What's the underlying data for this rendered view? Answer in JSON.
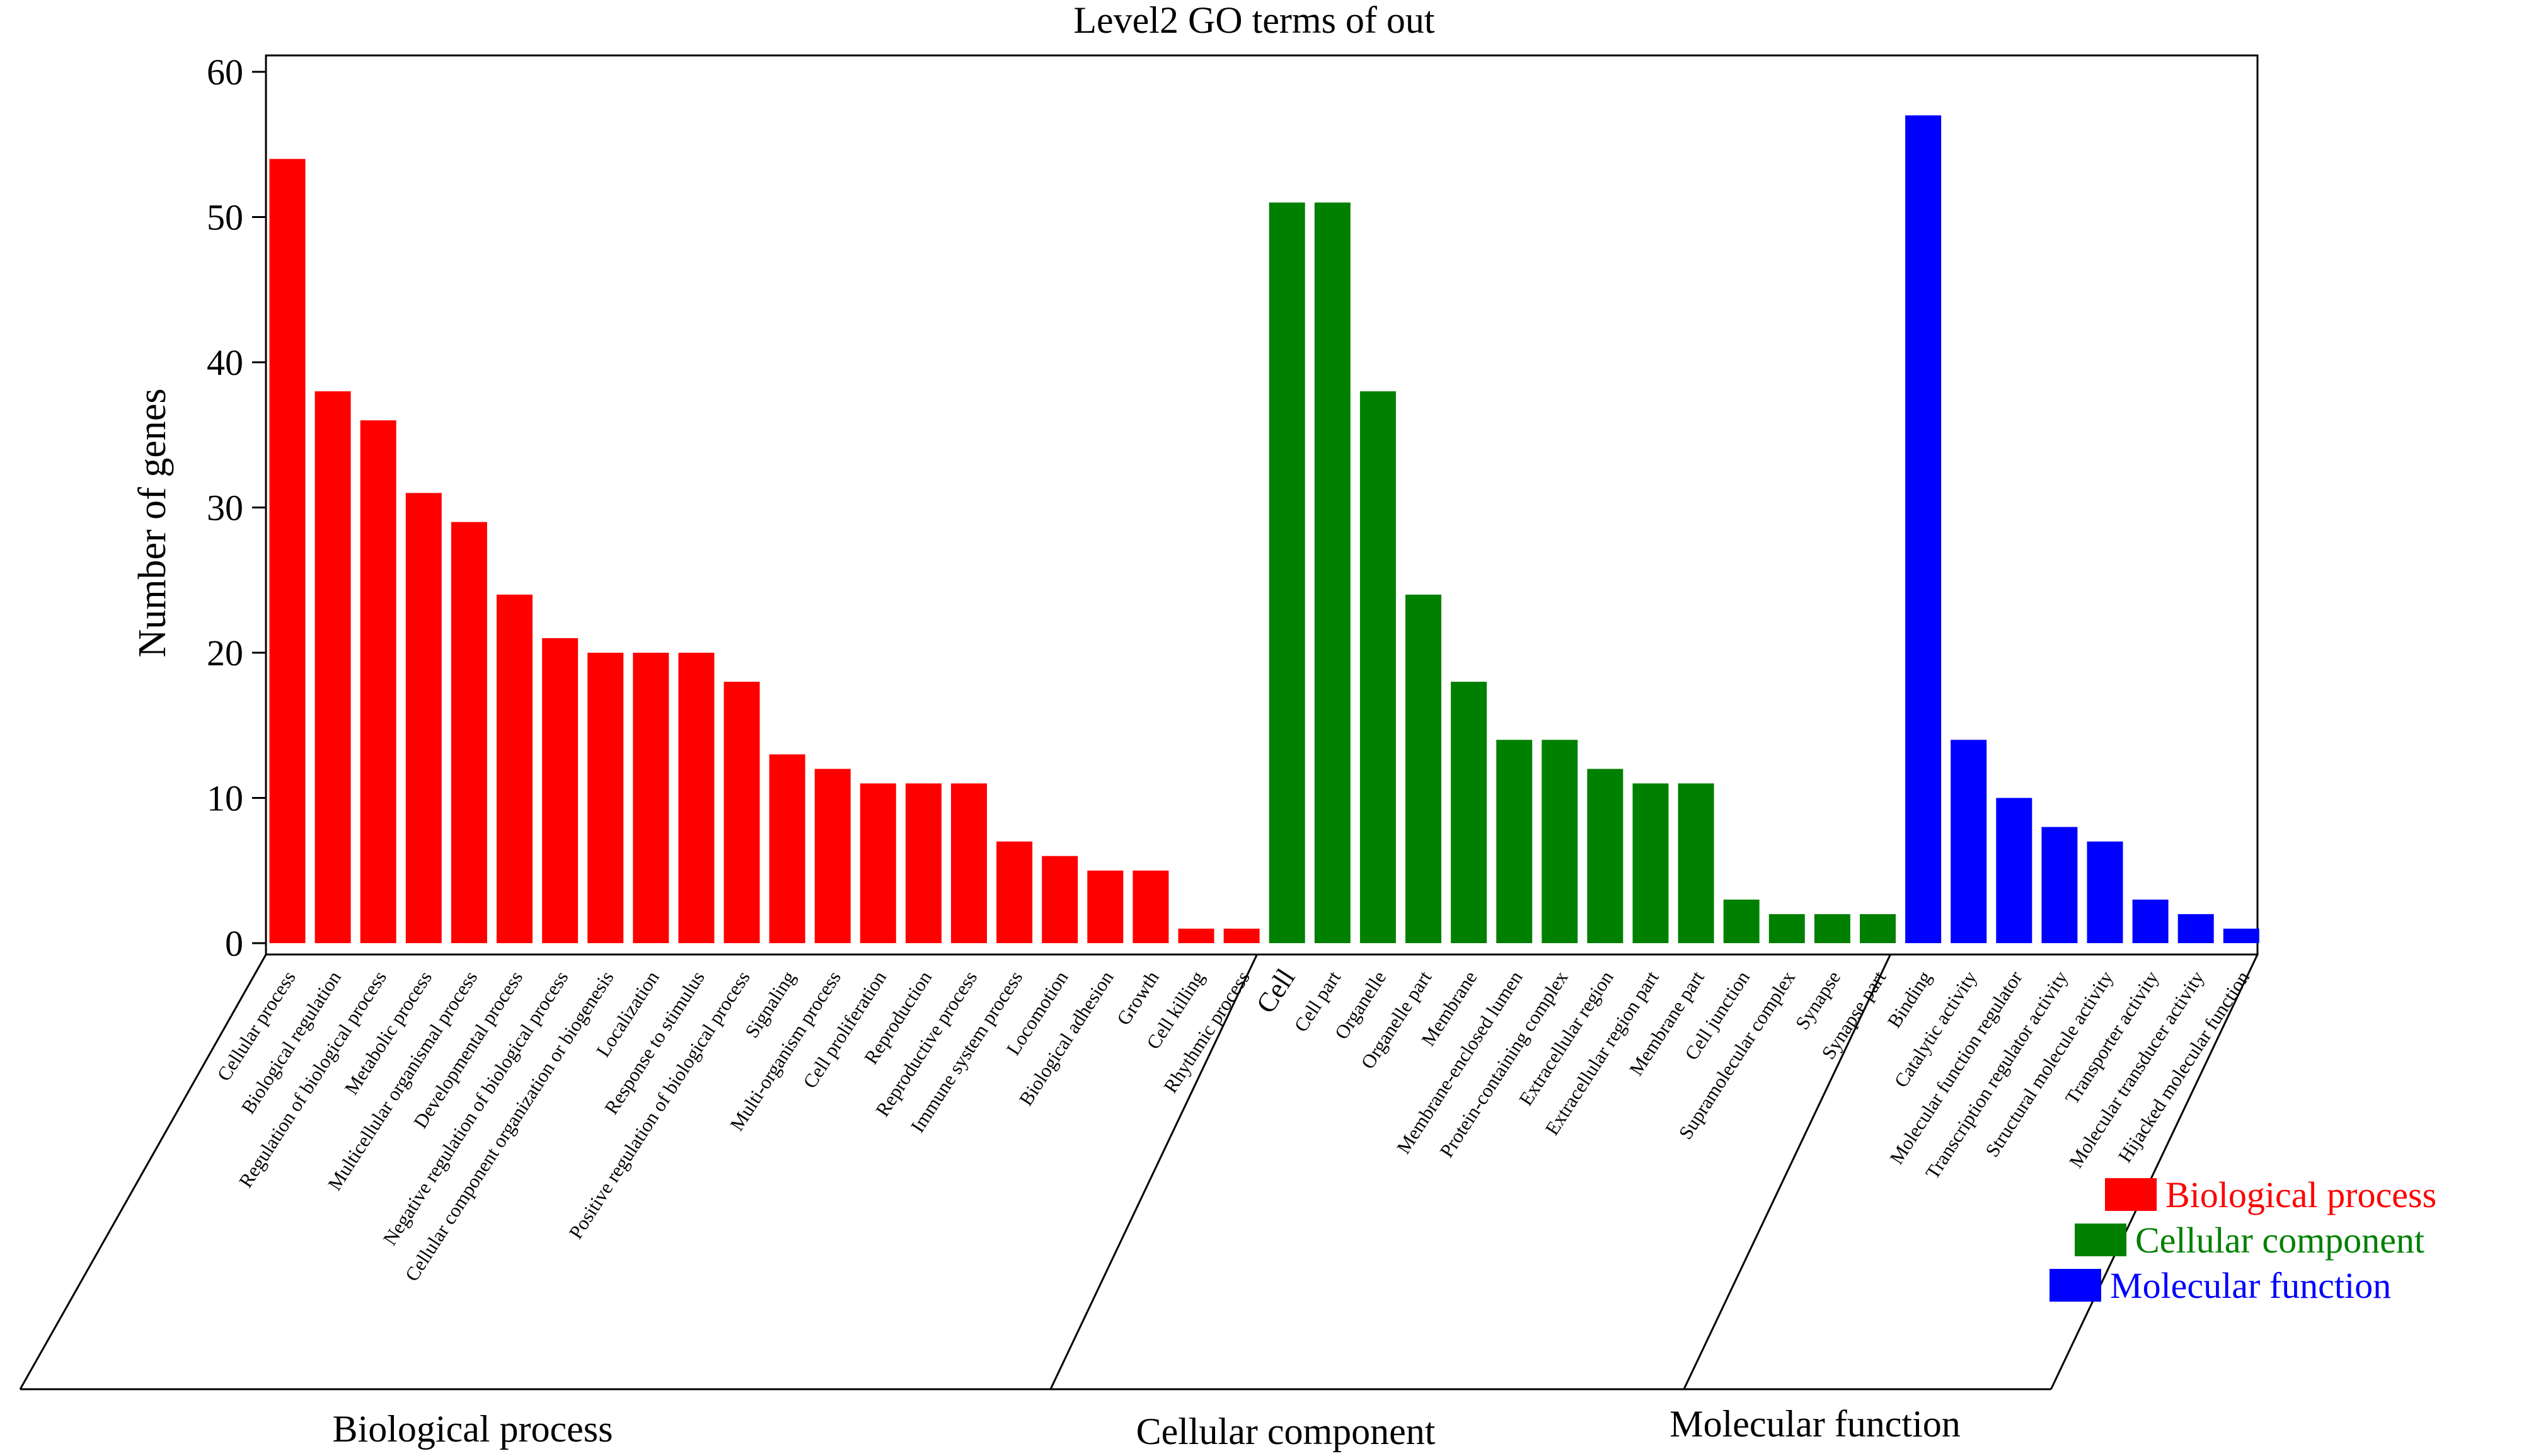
{
  "chart_data": {
    "type": "bar",
    "title": "Level2 GO terms of out",
    "ylabel": "Number of genes",
    "ylim": [
      0,
      60
    ],
    "yticks": [
      0,
      10,
      20,
      30,
      40,
      50,
      60
    ],
    "legend_position": "bottom-right",
    "groups": [
      {
        "name": "Biological process",
        "color": "#ff0000",
        "categories": [
          "Cellular process",
          "Biological regulation",
          "Regulation of biological process",
          "Metabolic process",
          "Multicellular organismal process",
          "Developmental process",
          "Negative regulation of biological process",
          "Cellular component organization or biogenesis",
          "Localization",
          "Response to stimulus",
          "Positive regulation of biological process",
          "Signaling",
          "Multi-organism process",
          "Cell proliferation",
          "Reproduction",
          "Reproductive process",
          "Immune system process",
          "Locomotion",
          "Biological adhesion",
          "Growth",
          "Cell killing",
          "Rhythmic process"
        ],
        "values": [
          54,
          38,
          36,
          31,
          29,
          24,
          21,
          20,
          20,
          20,
          18,
          13,
          12,
          11,
          11,
          11,
          7,
          6,
          5,
          5,
          1,
          1
        ]
      },
      {
        "name": "Cellular component",
        "color": "#008000",
        "categories": [
          "Cell",
          "Cell part",
          "Organelle",
          "Organelle part",
          "Membrane",
          "Membrane-enclosed lumen",
          "Protein-containing complex",
          "Extracellular region",
          "Extracellular region part",
          "Membrane part",
          "Cell junction",
          "Supramolecular complex",
          "Synapse",
          "Synapse part"
        ],
        "values": [
          51,
          51,
          38,
          24,
          18,
          14,
          14,
          12,
          11,
          11,
          3,
          2,
          2,
          2
        ]
      },
      {
        "name": "Molecular function",
        "color": "#0000ff",
        "categories": [
          "Binding",
          "Catalytic activity",
          "Molecular function regulator",
          "Transcription regulator activity",
          "Structural molecule activity",
          "Transporter activity",
          "Molecular transducer activity",
          "Hijacked molecular function"
        ],
        "values": [
          57,
          14,
          10,
          8,
          7,
          3,
          2,
          1
        ]
      }
    ]
  }
}
